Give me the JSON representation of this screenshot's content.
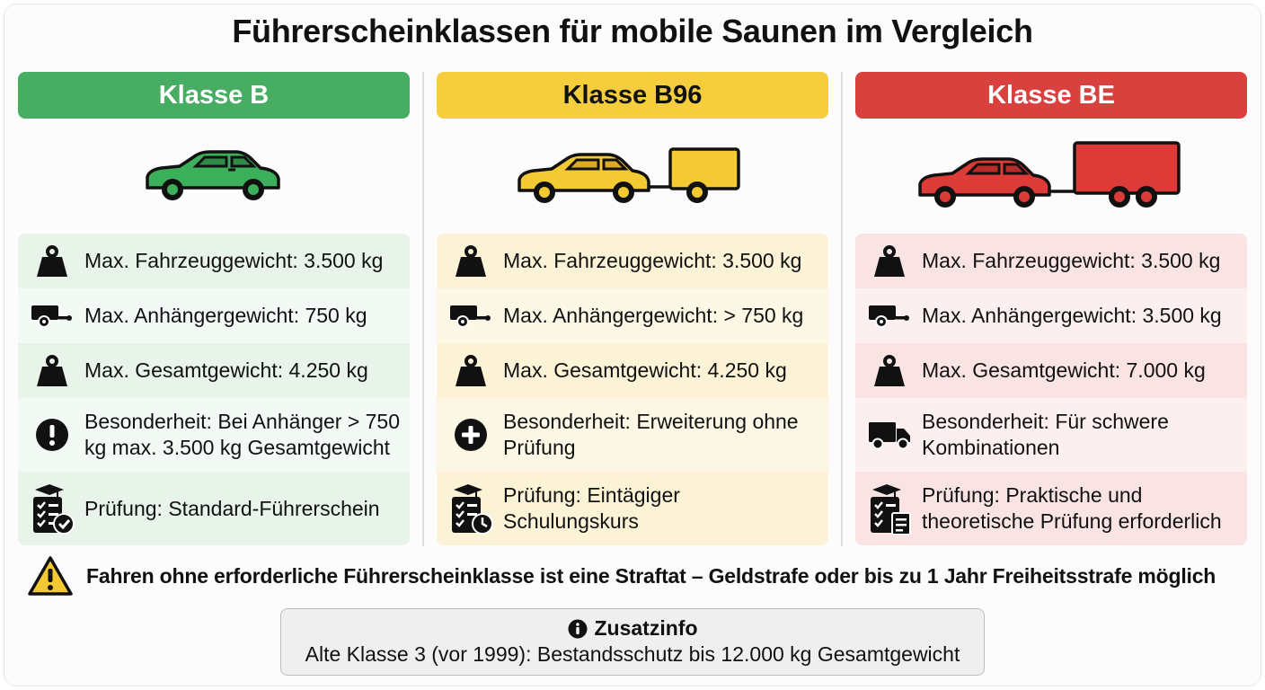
{
  "title": "Führerscheinklassen für mobile Saunen im Vergleich",
  "columns": [
    {
      "header": "Klasse B",
      "vehicle": "green-car-icon",
      "colors": {
        "header": "#46ad63",
        "header_text": "#ffffff",
        "row_a": "#e8f3ea",
        "row_b": "#f3f9f4",
        "vehicle": "#3caf5a"
      },
      "rows": [
        {
          "icon": "weight-icon",
          "text": "Max. Fahrzeuggewicht: 3.500 kg"
        },
        {
          "icon": "trailer-icon",
          "text": "Max. Anhängergewicht: 750 kg"
        },
        {
          "icon": "weight-icon",
          "text": "Max. Gesamtgewicht: 4.250 kg"
        },
        {
          "icon": "exclamation-icon",
          "text": "Besonderheit: Bei Anhänger > 750 kg max. 3.500 kg Gesamtgewicht"
        },
        {
          "icon": "exam-checkmark-icon",
          "text": "Prüfung: Standard-Führerschein"
        }
      ]
    },
    {
      "header": "Klasse B96",
      "vehicle": "yellow-car-with-trailer-icon",
      "colors": {
        "header": "#f5cd3d",
        "header_text": "#111111",
        "row_a": "#fcf3d6",
        "row_b": "#fdf8e6",
        "vehicle": "#f3c934"
      },
      "rows": [
        {
          "icon": "weight-icon",
          "text": "Max. Fahrzeuggewicht: 3.500 kg"
        },
        {
          "icon": "trailer-icon",
          "text": "Max. Anhängergewicht: > 750 kg"
        },
        {
          "icon": "weight-icon",
          "text": "Max. Gesamtgewicht: 4.250 kg"
        },
        {
          "icon": "plus-icon",
          "text": "Besonderheit: Erweiterung ohne Prüfung"
        },
        {
          "icon": "exam-clock-icon",
          "text": "Prüfung: Eintägiger Schulungskurs"
        }
      ]
    },
    {
      "header": "Klasse BE",
      "vehicle": "red-car-with-large-trailer-icon",
      "colors": {
        "header": "#d9413f",
        "header_text": "#ffffff",
        "row_a": "#fae3e3",
        "row_b": "#fcefef",
        "vehicle": "#dd3b37"
      },
      "rows": [
        {
          "icon": "weight-icon",
          "text": "Max. Fahrzeuggewicht: 3.500 kg"
        },
        {
          "icon": "trailer-icon",
          "text": "Max. Anhängergewicht: 3.500 kg"
        },
        {
          "icon": "weight-icon",
          "text": "Max. Gesamtgewicht: 7.000 kg"
        },
        {
          "icon": "truck-icon",
          "text": "Besonderheit: Für schwere Kombinationen"
        },
        {
          "icon": "exam-document-icon",
          "text": "Prüfung: Praktische und theoretische Prüfung erforderlich"
        }
      ]
    }
  ],
  "warning": {
    "icon": "warning-triangle-icon",
    "text": "Fahren ohne erforderliche Führerscheinklasse ist eine Straftat – Geldstrafe oder bis zu 1 Jahr Freiheitsstrafe möglich"
  },
  "info": {
    "icon": "info-icon",
    "title": "Zusatzinfo",
    "text": "Alte Klasse 3 (vor 1999): Bestandsschutz bis 12.000 kg Gesamtgewicht"
  }
}
